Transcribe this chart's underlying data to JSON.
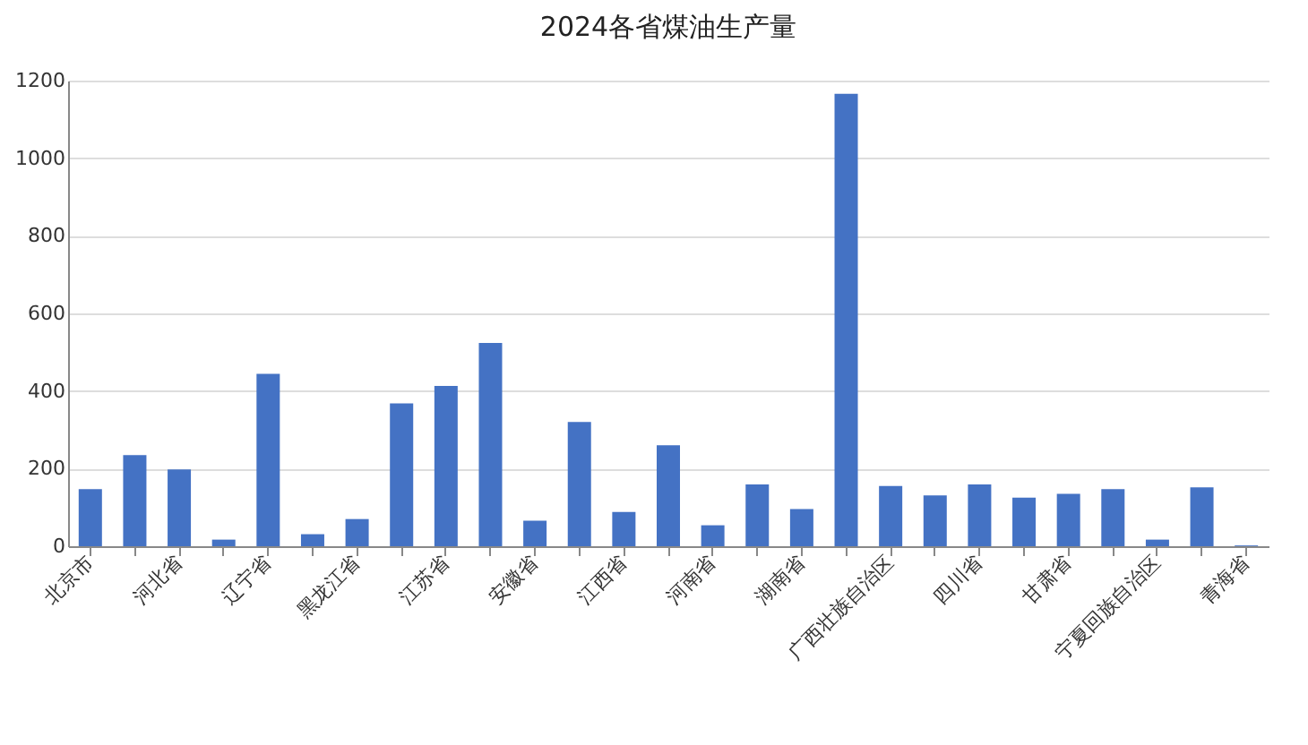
{
  "chart_data": {
    "type": "bar",
    "title": "2024各省煤油生产量",
    "categories": [
      "北京市",
      null,
      "河北省",
      null,
      "辽宁省",
      null,
      "黑龙江省",
      null,
      "江苏省",
      null,
      "安徽省",
      null,
      "江西省",
      null,
      "河南省",
      null,
      "湖南省",
      null,
      "广西壮族自治区",
      null,
      "四川省",
      null,
      "甘肃省",
      null,
      "宁夏回族自治区",
      null,
      "青海省"
    ],
    "values": [
      147,
      235,
      198,
      17,
      444,
      31,
      70,
      368,
      413,
      524,
      66,
      320,
      88,
      260,
      54,
      159,
      96,
      1166,
      155,
      131,
      159,
      125,
      135,
      147,
      17,
      152,
      2
    ],
    "color": "#4472c4",
    "ylim": [
      0,
      1200
    ],
    "yticks": [
      0,
      200,
      400,
      600,
      800,
      1000,
      1200
    ],
    "grid": "y"
  }
}
